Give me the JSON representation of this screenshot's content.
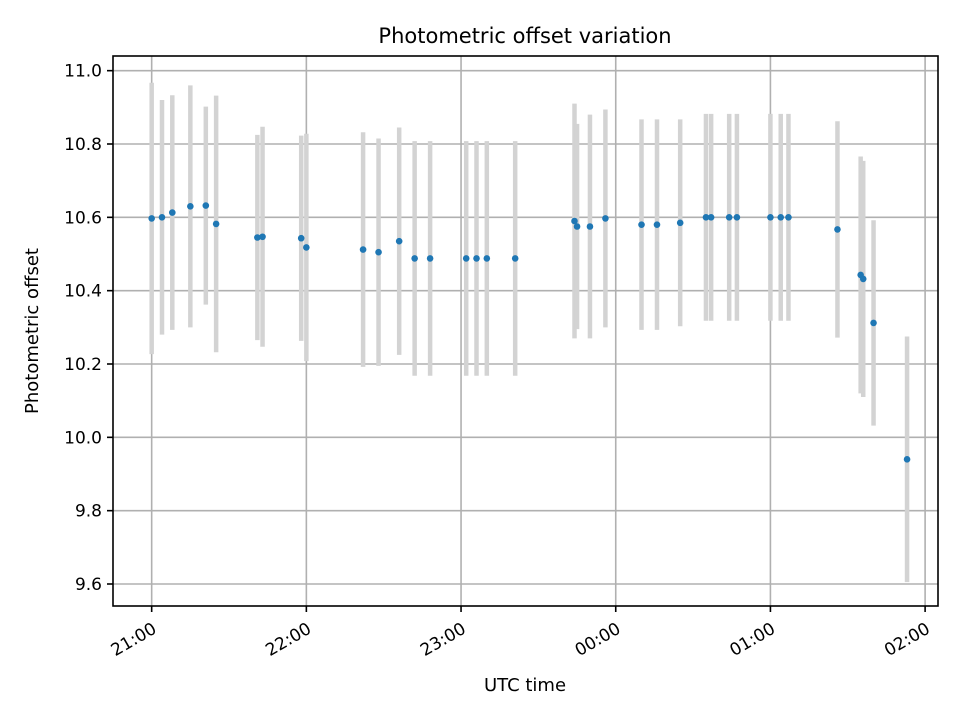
{
  "chart_data": {
    "type": "scatter",
    "title": "Photometric offset variation",
    "xlabel": "UTC time",
    "ylabel": "Photometric offset",
    "x_unit": "time",
    "x_ticks": [
      "21:00",
      "22:00",
      "23:00",
      "00:00",
      "01:00",
      "02:00"
    ],
    "x_tick_values": [
      "21:00",
      "22:00",
      "23:00",
      "24:00",
      "25:00",
      "26:00"
    ],
    "xlim": [
      "20:45",
      "26:05"
    ],
    "y_ticks": [
      "9.6",
      "9.8",
      "10.0",
      "10.2",
      "10.4",
      "10.6",
      "10.8",
      "11.0"
    ],
    "ylim": [
      9.54,
      11.04
    ],
    "grid": true,
    "point_color": "#1f77b4",
    "errorbar_color": "#d3d3d3",
    "points": [
      {
        "t": "21:00",
        "y": 10.597,
        "err": 0.37
      },
      {
        "t": "21:04",
        "y": 10.6,
        "err": 0.32
      },
      {
        "t": "21:08",
        "y": 10.613,
        "err": 0.32
      },
      {
        "t": "21:15",
        "y": 10.63,
        "err": 0.33
      },
      {
        "t": "21:21",
        "y": 10.632,
        "err": 0.27
      },
      {
        "t": "21:25",
        "y": 10.582,
        "err": 0.35
      },
      {
        "t": "21:41",
        "y": 10.545,
        "err": 0.28
      },
      {
        "t": "21:43",
        "y": 10.547,
        "err": 0.3
      },
      {
        "t": "21:58",
        "y": 10.543,
        "err": 0.28
      },
      {
        "t": "22:00",
        "y": 10.518,
        "err": 0.31
      },
      {
        "t": "22:22",
        "y": 10.512,
        "err": 0.32
      },
      {
        "t": "22:28",
        "y": 10.505,
        "err": 0.31
      },
      {
        "t": "22:36",
        "y": 10.535,
        "err": 0.31
      },
      {
        "t": "22:42",
        "y": 10.488,
        "err": 0.32
      },
      {
        "t": "22:48",
        "y": 10.488,
        "err": 0.32
      },
      {
        "t": "23:02",
        "y": 10.488,
        "err": 0.32
      },
      {
        "t": "23:06",
        "y": 10.488,
        "err": 0.32
      },
      {
        "t": "23:10",
        "y": 10.488,
        "err": 0.32
      },
      {
        "t": "23:21",
        "y": 10.488,
        "err": 0.32
      },
      {
        "t": "23:44",
        "y": 10.59,
        "err": 0.32
      },
      {
        "t": "23:45",
        "y": 10.575,
        "err": 0.28
      },
      {
        "t": "23:50",
        "y": 10.575,
        "err": 0.305
      },
      {
        "t": "23:56",
        "y": 10.597,
        "err": 0.297
      },
      {
        "t": "24:10",
        "y": 10.58,
        "err": 0.287
      },
      {
        "t": "24:16",
        "y": 10.58,
        "err": 0.287
      },
      {
        "t": "24:25",
        "y": 10.585,
        "err": 0.282
      },
      {
        "t": "24:35",
        "y": 10.6,
        "err": 0.282
      },
      {
        "t": "24:37",
        "y": 10.6,
        "err": 0.282
      },
      {
        "t": "24:44",
        "y": 10.6,
        "err": 0.282
      },
      {
        "t": "24:47",
        "y": 10.6,
        "err": 0.282
      },
      {
        "t": "25:00",
        "y": 10.6,
        "err": 0.282
      },
      {
        "t": "25:04",
        "y": 10.6,
        "err": 0.282
      },
      {
        "t": "25:07",
        "y": 10.6,
        "err": 0.282
      },
      {
        "t": "25:26",
        "y": 10.567,
        "err": 0.295
      },
      {
        "t": "25:35",
        "y": 10.443,
        "err": 0.323
      },
      {
        "t": "25:36",
        "y": 10.432,
        "err": 0.322
      },
      {
        "t": "25:40",
        "y": 10.312,
        "err": 0.28
      },
      {
        "t": "25:53",
        "y": 9.94,
        "err": 0.335
      }
    ]
  }
}
